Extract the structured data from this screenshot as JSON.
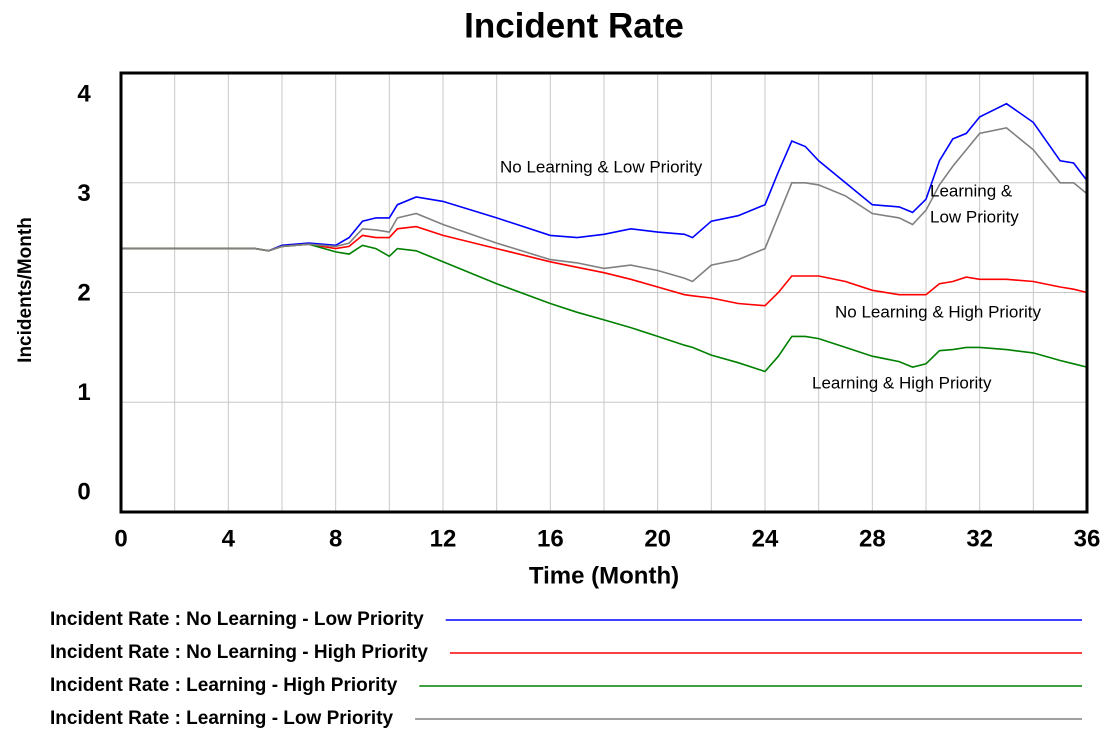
{
  "chart_data": {
    "type": "line",
    "title": "Incident Rate",
    "x_label": "Time (Month)",
    "y_label": "Incidents/Month",
    "x": [
      0,
      5,
      5.5,
      6,
      7,
      8,
      8.5,
      9,
      9.5,
      10,
      10.3,
      11,
      12,
      14,
      16,
      17,
      18,
      19,
      20,
      21,
      21.3,
      22,
      23,
      24,
      24.5,
      25,
      25.5,
      26,
      27,
      28,
      29,
      29.5,
      30,
      30.5,
      31,
      31.5,
      32,
      33,
      34,
      35,
      35.5,
      36
    ],
    "series": [
      {
        "name": "Incident Rate : No Learning - Low Priority",
        "color": "#0000ff",
        "values": [
          2.4,
          2.4,
          2.38,
          2.43,
          2.45,
          2.43,
          2.5,
          2.65,
          2.68,
          2.68,
          2.8,
          2.87,
          2.83,
          2.68,
          2.52,
          2.5,
          2.53,
          2.58,
          2.55,
          2.53,
          2.5,
          2.65,
          2.7,
          2.8,
          3.1,
          3.38,
          3.33,
          3.2,
          3.0,
          2.8,
          2.78,
          2.73,
          2.85,
          3.2,
          3.4,
          3.45,
          3.6,
          3.72,
          3.55,
          3.2,
          3.18,
          3.02
        ]
      },
      {
        "name": "Incident Rate : No Learning - High Priority",
        "color": "#ff0000",
        "values": [
          2.4,
          2.4,
          2.38,
          2.42,
          2.44,
          2.4,
          2.42,
          2.52,
          2.5,
          2.5,
          2.58,
          2.6,
          2.52,
          2.4,
          2.28,
          2.23,
          2.18,
          2.12,
          2.05,
          1.98,
          1.97,
          1.95,
          1.9,
          1.88,
          2.0,
          2.15,
          2.15,
          2.15,
          2.1,
          2.02,
          1.98,
          1.98,
          1.98,
          2.08,
          2.1,
          2.14,
          2.12,
          2.12,
          2.1,
          2.05,
          2.03,
          2.0
        ]
      },
      {
        "name": "Incident Rate : Learning - High Priority",
        "color": "#008000",
        "values": [
          2.4,
          2.4,
          2.38,
          2.42,
          2.44,
          2.37,
          2.35,
          2.43,
          2.4,
          2.33,
          2.4,
          2.38,
          2.28,
          2.08,
          1.9,
          1.82,
          1.75,
          1.68,
          1.6,
          1.52,
          1.5,
          1.43,
          1.36,
          1.28,
          1.42,
          1.6,
          1.6,
          1.58,
          1.5,
          1.42,
          1.37,
          1.32,
          1.35,
          1.47,
          1.48,
          1.5,
          1.5,
          1.48,
          1.45,
          1.38,
          1.35,
          1.32
        ]
      },
      {
        "name": "Incident Rate : Learning - Low Priority",
        "color": "#808080",
        "values": [
          2.4,
          2.4,
          2.38,
          2.42,
          2.44,
          2.42,
          2.45,
          2.58,
          2.57,
          2.55,
          2.68,
          2.72,
          2.62,
          2.45,
          2.3,
          2.27,
          2.22,
          2.25,
          2.2,
          2.13,
          2.1,
          2.25,
          2.3,
          2.4,
          2.7,
          3.0,
          3.0,
          2.98,
          2.88,
          2.72,
          2.68,
          2.62,
          2.75,
          2.98,
          3.15,
          3.3,
          3.45,
          3.5,
          3.3,
          3.0,
          3.0,
          2.9
        ]
      }
    ],
    "annotations": [
      "No Learning & Low Priority",
      "Learning &",
      "Low Priority",
      "No Learning & High Priority",
      "Learning & High Priority"
    ],
    "xlim": [
      0,
      36
    ],
    "xticks": [
      0,
      4,
      8,
      12,
      16,
      20,
      24,
      28,
      32,
      36
    ],
    "ylim": [
      0,
      4
    ],
    "yticks": [
      0,
      1,
      2,
      3,
      4
    ],
    "grid": true
  }
}
